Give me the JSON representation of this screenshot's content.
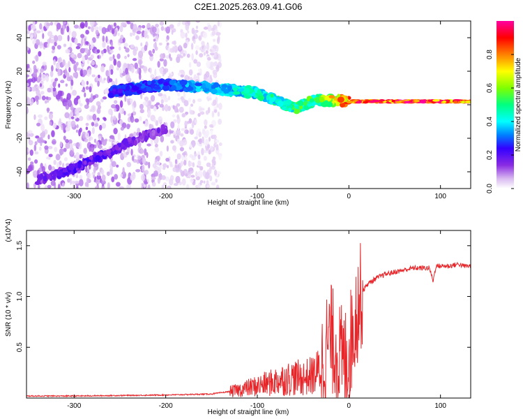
{
  "title": "C2E1.2025.263.09.41.G06",
  "chart_data": [
    {
      "type": "heatmap",
      "title": "C2E1.2025.263.09.41.G06",
      "xlabel": "Height of straight line (km)",
      "ylabel": "Frequency (Hz)",
      "xlim": [
        -352,
        133
      ],
      "ylim": [
        -50,
        50
      ],
      "xticks": [
        -300,
        -200,
        -100,
        0,
        100
      ],
      "yticks": [
        -40,
        -20,
        0,
        20,
        40
      ],
      "colorbar": {
        "label": "Normalized spectral amplitude",
        "range": [
          0,
          1
        ],
        "ticks": [
          0.0,
          0.2,
          0.4,
          0.6,
          0.8
        ],
        "tick_labels": [
          "0.0",
          "0.2",
          "0.4",
          "0.6",
          "0.8"
        ],
        "colormap": [
          "#ffffff",
          "#d8b8f0",
          "#8a2be2",
          "#3300ff",
          "#0080ff",
          "#00ffff",
          "#00ff80",
          "#80ff00",
          "#ffff00",
          "#ff8000",
          "#ff0000",
          "#ff00a0"
        ]
      },
      "features": [
        {
          "name": "direct signal",
          "height_km": [
            -260,
            -200,
            -150,
            -100,
            -60,
            -35,
            0,
            50,
            100,
            133
          ],
          "frequency_hz": [
            8,
            12,
            10,
            7,
            -2,
            3,
            2,
            2,
            2,
            2
          ],
          "amplitude": [
            0.3,
            0.35,
            0.45,
            0.5,
            0.55,
            0.6,
            0.9,
            0.95,
            0.95,
            0.9
          ]
        },
        {
          "name": "secondary branch",
          "height_km": [
            -340,
            -300,
            -260,
            -230,
            -200
          ],
          "frequency_hz": [
            -45,
            -38,
            -28,
            -20,
            -15
          ],
          "amplitude": [
            0.2,
            0.25,
            0.25,
            0.2,
            0.2
          ]
        }
      ]
    },
    {
      "type": "line",
      "title": "",
      "xlabel": "Height of straight line (km)",
      "ylabel": "SNR (10 * v/v)",
      "y_multiplier": "(x10^4)",
      "xlim": [
        -352,
        133
      ],
      "ylim": [
        0,
        1.65
      ],
      "xticks": [
        -300,
        -200,
        -100,
        0,
        100
      ],
      "yticks": [
        0.5,
        1.0,
        1.5
      ],
      "ytick_labels": [
        "0.5",
        "1.0",
        "1.5"
      ],
      "series": [
        {
          "name": "SNR",
          "color": "#e8262a",
          "x": [
            -352,
            -300,
            -250,
            -200,
            -175,
            -150,
            -125,
            -100,
            -85,
            -75,
            -60,
            -50,
            -40,
            -35,
            -30,
            -25,
            -20,
            -15,
            -10,
            -5,
            0,
            5,
            10,
            15,
            20,
            25,
            30,
            40,
            50,
            60,
            70,
            80,
            88,
            92,
            95,
            100,
            110,
            120,
            125,
            133
          ],
          "y": [
            0.02,
            0.02,
            0.025,
            0.03,
            0.035,
            0.04,
            0.07,
            0.12,
            0.15,
            0.18,
            0.2,
            0.2,
            0.22,
            0.25,
            0.3,
            0.5,
            0.6,
            0.5,
            0.4,
            0.35,
            0.45,
            0.7,
            0.92,
            1.05,
            1.12,
            1.15,
            1.18,
            1.22,
            1.24,
            1.26,
            1.28,
            1.28,
            1.28,
            1.15,
            1.3,
            1.3,
            1.3,
            1.32,
            1.3,
            1.3
          ]
        }
      ]
    }
  ]
}
